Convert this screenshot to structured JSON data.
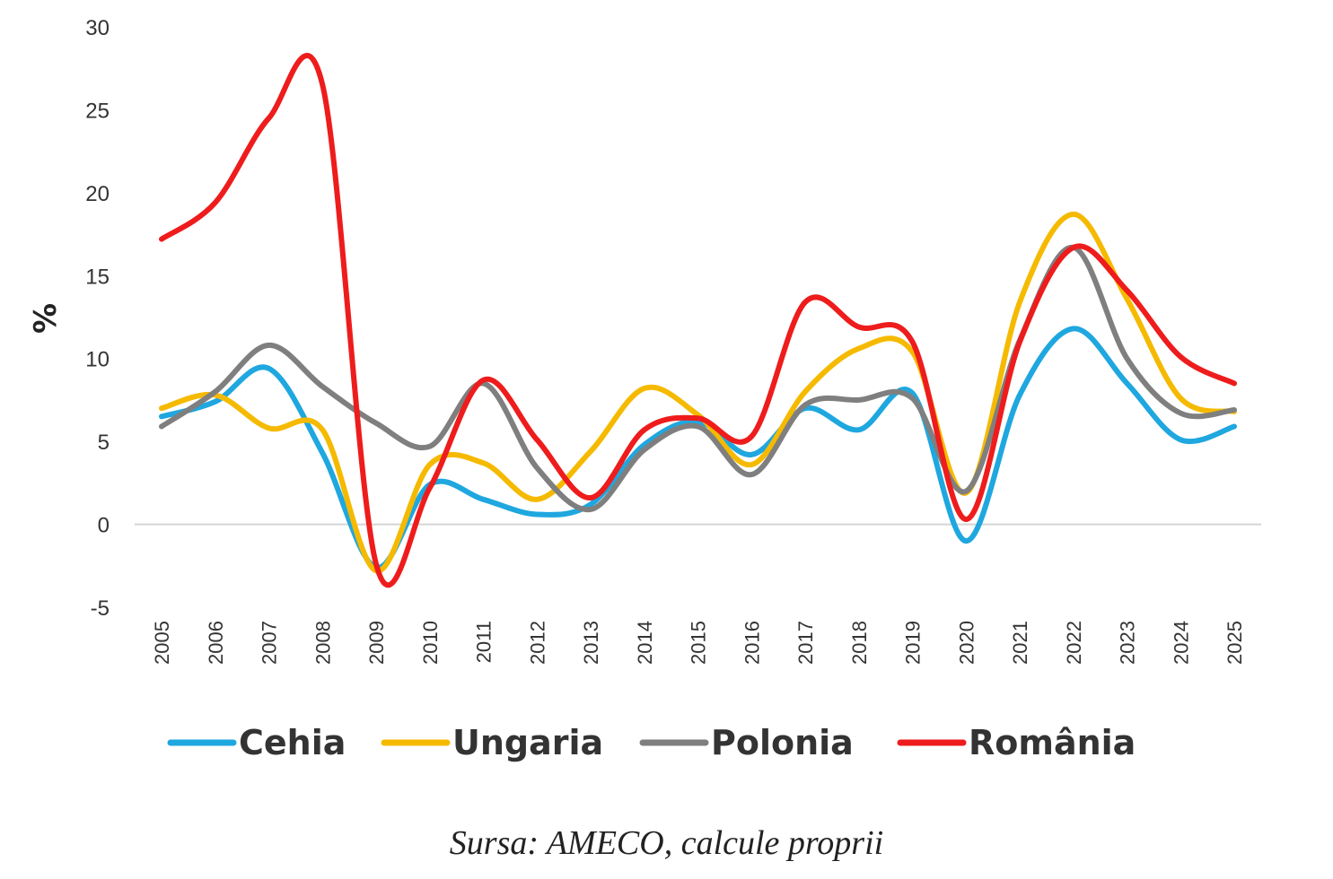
{
  "chart_data": {
    "type": "line",
    "title": "",
    "xlabel": "",
    "ylabel": "%",
    "ylim": [
      -5,
      30
    ],
    "yticks": [
      -5,
      0,
      5,
      10,
      15,
      20,
      25,
      30
    ],
    "grid": false,
    "legend": "bottom",
    "categories": [
      "2005",
      "2006",
      "2007",
      "2008",
      "2009",
      "2010",
      "2011",
      "2012",
      "2013",
      "2014",
      "2015",
      "2016",
      "2017",
      "2018",
      "2019",
      "2020",
      "2021",
      "2022",
      "2023",
      "2024",
      "2025"
    ],
    "series": [
      {
        "name": "Cehia",
        "color": "#1FA7DF",
        "values": [
          6.5,
          7.4,
          9.4,
          4.3,
          -2.6,
          2.4,
          1.5,
          0.6,
          1.2,
          4.8,
          6.2,
          4.2,
          7.0,
          5.7,
          7.9,
          -1.0,
          7.8,
          11.8,
          8.5,
          5.1,
          5.9
        ]
      },
      {
        "name": "Ungaria",
        "color": "#F5BA00",
        "values": [
          7.0,
          7.8,
          5.8,
          5.7,
          -2.8,
          3.6,
          3.7,
          1.5,
          4.4,
          8.2,
          6.6,
          3.6,
          8.0,
          10.6,
          10.4,
          1.9,
          13.4,
          18.7,
          13.6,
          7.6,
          6.8
        ]
      },
      {
        "name": "Polonia",
        "color": "#7F7F7F",
        "values": [
          5.9,
          8.0,
          10.8,
          8.3,
          6.1,
          4.7,
          8.5,
          3.4,
          0.9,
          4.5,
          5.9,
          3.0,
          7.2,
          7.5,
          7.6,
          2.0,
          11.1,
          16.7,
          10.0,
          6.7,
          6.9
        ]
      },
      {
        "name": "România",
        "color": "#EE1C1C",
        "values": [
          17.2,
          19.4,
          24.5,
          26.5,
          -2.4,
          2.2,
          8.7,
          5.1,
          1.6,
          5.7,
          6.4,
          5.3,
          13.4,
          11.9,
          11.0,
          0.3,
          11.0,
          16.7,
          14.1,
          10.1,
          8.5
        ]
      }
    ]
  },
  "source": "Sursa: AMECO, calcule proprii"
}
